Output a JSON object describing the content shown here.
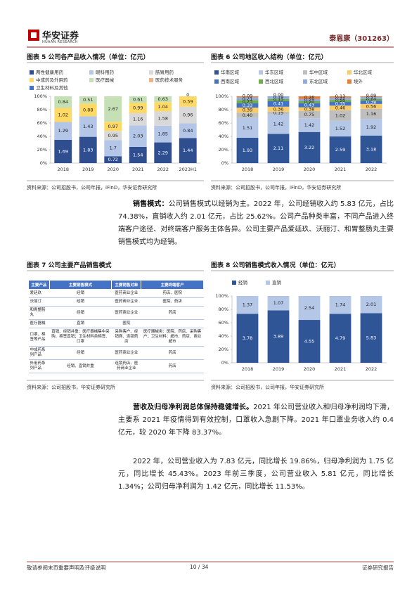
{
  "header": {
    "logo": "华安证券",
    "logo_en": "HUAAN RESEARCH",
    "company": "泰恩康（301263）"
  },
  "chart_data": [
    {
      "type": "bar",
      "stacked": "percent",
      "title": "图表 5 公司各产品收入情况（单位：亿元）",
      "categories": [
        "2018",
        "2019",
        "2020",
        "2021",
        "2022",
        "2023H1"
      ],
      "series": [
        {
          "name": "两性健康用药",
          "color": "#2f4e8f",
          "values": [
            1.69,
            1.83,
            0.72,
            1.54,
            2.29,
            1.44
          ]
        },
        {
          "name": "眼科用药",
          "color": "#b4c6e7",
          "values": [
            1.29,
            1.43,
            1.7,
            2.03,
            1.85,
            0.84
          ]
        },
        {
          "name": "肠胃用药",
          "color": "#d9d9d9",
          "values": [
            null,
            null,
            0.95,
            1.16,
            1.58,
            0.96
          ]
        },
        {
          "name": "中成药及外用药",
          "color": "#ffd966",
          "values": [
            1.02,
            0.88,
            0.97,
            0.99,
            1.04,
            0.59
          ]
        },
        {
          "name": "医疗器械",
          "color": "#c5e0b4",
          "values": [
            0.84,
            0.51,
            2.67,
            0.61,
            0.63,
            null
          ]
        },
        {
          "name": "医药技术服务",
          "color": "#f4b183",
          "values": [
            null,
            null,
            null,
            null,
            null,
            0
          ]
        },
        {
          "name": "卫生材料及其他",
          "color": "#4472c4",
          "values": [
            null,
            null,
            null,
            null,
            null,
            null
          ]
        }
      ],
      "ylim": [
        0,
        100
      ],
      "yticks": [
        {
          "value": 0,
          "label": "0%"
        },
        {
          "value": 20,
          "label": "20%"
        },
        {
          "value": 40,
          "label": "40%"
        },
        {
          "value": 60,
          "label": "60%"
        },
        {
          "value": 80,
          "label": "80%"
        },
        {
          "value": 100,
          "label": "100%"
        }
      ],
      "source": "资料来源：公司招股书，公司年报，iFinD，华安证券研究所"
    },
    {
      "type": "bar",
      "stacked": "percent",
      "title": "图表 6 公司地区收入结构（单位：亿元）",
      "categories": [
        "2018",
        "2019",
        "2020",
        "2021",
        "2022"
      ],
      "series": [
        {
          "name": "华南区域",
          "color": "#2f5597",
          "values": [
            1.93,
            2.11,
            3.22,
            2.59,
            3.18
          ]
        },
        {
          "name": "华东区域",
          "color": "#b4c7e7",
          "values": [
            1.51,
            1.42,
            1.42,
            1.52,
            1.92
          ]
        },
        {
          "name": "华中区域",
          "color": "#bfbfbf",
          "values": [
            0.4,
            0.19,
            0.75,
            1.02,
            1.16
          ],
          "value_labels": [
            "0.40",
            "0.19",
            "0.75",
            "1.02",
            "1.16"
          ]
        },
        {
          "name": "华北区域",
          "color": "#f8cb6b",
          "values": [
            0.39,
            0.36,
            0.38,
            0.46,
            0.56
          ]
        },
        {
          "name": "西南区域",
          "color": "#4472c4",
          "values": [
            0.33,
            0.41,
            0.43,
            0.35,
            0.38
          ]
        },
        {
          "name": "西北区域",
          "color": "#70ad47",
          "values": [
            0.23,
            0.15,
            0.2,
            0.2,
            0.2
          ],
          "value_labels": [
            "0.23",
            "0.15",
            "0.20",
            "0.20",
            "0.20"
          ]
        },
        {
          "name": "东北区域",
          "color": "#8faadc",
          "values": [
            0.21,
            0.19,
            0.25,
            0.22,
            0.21
          ]
        },
        {
          "name": "境外",
          "color": "#ed7d31",
          "values": [
            0.09,
            0,
            0.26,
            0.13,
            0.09
          ],
          "value_labels": [
            "0.09",
            "0.00",
            "0.26",
            "0.13",
            "0.09"
          ]
        }
      ],
      "ylim": [
        0,
        100
      ],
      "yticks": [
        {
          "value": 0,
          "label": "0%"
        },
        {
          "value": 20,
          "label": "20%"
        },
        {
          "value": 40,
          "label": "40%"
        },
        {
          "value": 60,
          "label": "60%"
        },
        {
          "value": 80,
          "label": "80%"
        },
        {
          "value": 100,
          "label": "100%"
        }
      ],
      "source": "资料来源：公司招股书，公司年报，iFinD，华安证券研究所"
    },
    {
      "type": "bar",
      "stacked": "percent",
      "title": "图表 8 公司销售模式收入情况（单位：亿元）",
      "categories": [
        "2018",
        "2019",
        "2020",
        "2021",
        "2022"
      ],
      "series": [
        {
          "name": "经销",
          "color": "#2f5597",
          "values": [
            3.78,
            3.89,
            4.55,
            4.79,
            5.83
          ]
        },
        {
          "name": "直销",
          "color": "#b4c7e7",
          "values": [
            1.37,
            1.07,
            2.54,
            1.74,
            2.01
          ]
        }
      ],
      "ylim": [
        0,
        100
      ],
      "yticks": [
        {
          "value": 0,
          "label": "0%"
        },
        {
          "value": 20,
          "label": "20%"
        },
        {
          "value": 40,
          "label": "40%"
        },
        {
          "value": 60,
          "label": "60%"
        },
        {
          "value": 80,
          "label": "80%"
        },
        {
          "value": 100,
          "label": "100%"
        }
      ],
      "source": "资料来源：公司招股书，公司年报，华安证券研究所"
    }
  ],
  "figure7": {
    "title": "图表 7 公司主要产品销售模式",
    "columns": [
      "主要产品",
      "主要销售模式",
      "主要销售对象",
      "主要终端客户"
    ],
    "rows": [
      [
        "爱廷玖",
        "经销",
        "医药商业企业",
        "药店、医院"
      ],
      [
        "沃丽汀",
        "经销",
        "医药商业企业",
        "医院、药店"
      ],
      [
        "和胃整肠丸",
        "经销",
        "医药商业企业",
        "药店"
      ],
      [
        "医疗器械",
        "直销",
        "医院",
        ""
      ],
      [
        "口罩、棉签等产品",
        "直销、经销并重：医疗器械集中采购、棉签直销；卫生材料类棉签、口罩",
        "采购客户、经销商、连锁药店",
        "医疗器械类：医院、药店、采购客户；卫生材料：超市、药店、商业超市"
      ],
      [
        "中成药系列产品",
        "经销",
        "医药商业企业",
        "药店"
      ],
      [
        "外用药系列产品",
        "经销、直销并重",
        "连锁药店、医药商业企业",
        "药店"
      ]
    ],
    "source": "资料来源：公司招股书，华安证券研究所"
  },
  "paragraphs": [
    {
      "lead": "销售模式：",
      "text": "公司销售模式以经销为主。2022 年，公司经销收入约 5.83 亿元，占比 74.38%，直销收入约 2.01 亿元，占比 25.62%。公司产品种类丰富，不同产品进入终端客户途径、对终端客户服务主体各异。公司主要产品爱廷玖、沃丽汀、和胃整肠丸主要销售模式均为经销。"
    },
    {
      "lead": "营收及归母净利润总体保持稳健增长。",
      "text": "2021 年公司营业收入和归母净利润均下滑，主要系 2021 年疫情得到有效控制，口罩收入急剧下降。2021 年口罩业务收入约 0.4 亿元，较 2020 年下降 83.37%。"
    },
    {
      "lead": "",
      "text": "2022 年，公司营业收入为 7.83 亿元，同比增长 19.86%，归母净利润为 1.75 亿元，同比增长 45.43%。2023 年前三季度，公司营业收入 5.81 亿元，同比增长 1.34%；公司归母净利润为 1.42 亿元，同比增长 11.53%。"
    }
  ],
  "footer": {
    "left": "敬请参阅末页重要声明及评级说明",
    "page": "10 / 34",
    "right": "证券研究报告"
  }
}
